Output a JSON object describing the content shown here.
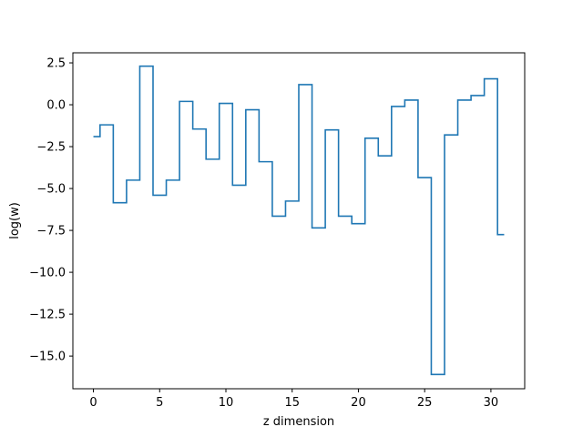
{
  "chart_data": {
    "type": "line",
    "drawstyle": "steps-mid",
    "xlabel": "z dimension",
    "ylabel": "log(w)",
    "xlim": [
      -1.55,
      32.55
    ],
    "ylim": [
      -16.95,
      3.1
    ],
    "x_ticks": [
      0,
      5,
      10,
      15,
      20,
      25,
      30
    ],
    "y_ticks": [
      2.5,
      0.0,
      -2.5,
      -5.0,
      -7.5,
      -10.0,
      -12.5,
      -15.0
    ],
    "x_tick_labels": [
      "0",
      "5",
      "10",
      "15",
      "20",
      "25",
      "30"
    ],
    "y_tick_labels": [
      "2.5",
      "0.0",
      "−2.5",
      "−5.0",
      "−7.5",
      "−10.0",
      "−12.5",
      "−15.0"
    ],
    "grid": false,
    "line_color": "#1f77b4",
    "series": [
      {
        "x": [
          0,
          1,
          2,
          3,
          4,
          5,
          6,
          7,
          8,
          9,
          10,
          11,
          12,
          13,
          14,
          15,
          16,
          17,
          18,
          19,
          20,
          21,
          22,
          23,
          24,
          25,
          26,
          27,
          28,
          29,
          30,
          31
        ],
        "values": [
          -1.9,
          -1.2,
          -5.85,
          -4.5,
          2.3,
          -5.4,
          -4.5,
          0.2,
          -1.45,
          -3.25,
          0.08,
          -4.8,
          -0.3,
          -3.4,
          -6.65,
          -5.75,
          1.2,
          -7.35,
          -1.5,
          -6.65,
          -7.1,
          -2.0,
          -3.05,
          -0.1,
          0.28,
          -4.35,
          -16.1,
          -1.8,
          0.28,
          0.55,
          1.55,
          -7.75
        ]
      }
    ]
  }
}
